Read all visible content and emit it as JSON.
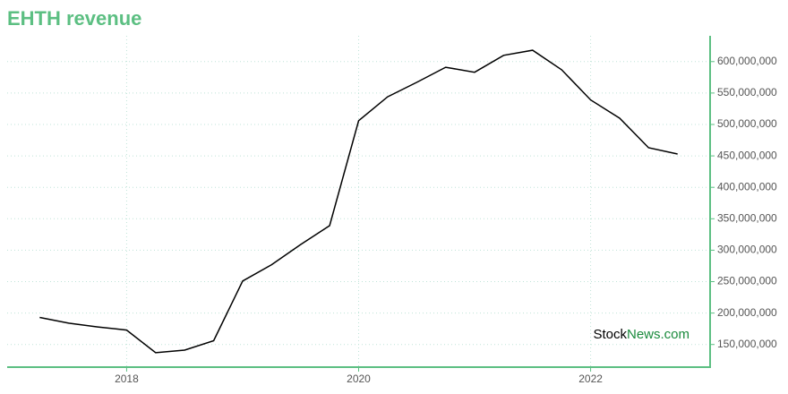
{
  "chart_data": {
    "type": "line",
    "title": "EHTH revenue",
    "x": [
      2017.25,
      2017.5,
      2017.75,
      2018,
      2018.25,
      2018.5,
      2018.75,
      2019,
      2019.25,
      2019.5,
      2019.75,
      2020,
      2020.25,
      2020.5,
      2020.75,
      2021,
      2021.25,
      2021.5,
      2021.75,
      2022,
      2022.25,
      2022.5,
      2022.75
    ],
    "series": [
      {
        "color": "#000000",
        "values": [
          193000000,
          184000000,
          178000000,
          173000000,
          137000000,
          141000000,
          156000000,
          251000000,
          277000000,
          309000000,
          339000000,
          506000000,
          544000000,
          567000000,
          591000000,
          583000000,
          610000000,
          618000000,
          587000000,
          539000000,
          510000000,
          463000000,
          453000000
        ]
      }
    ],
    "xlim": [
      2016.97,
      2023.03
    ],
    "xticks": [
      2018,
      2020,
      2022
    ],
    "ylim": [
      114000000,
      641000000
    ],
    "yticks": [
      {
        "value": 150000000,
        "label": "150,000,000"
      },
      {
        "value": 200000000,
        "label": "200,000,000"
      },
      {
        "value": 250000000,
        "label": "250,000,000"
      },
      {
        "value": 300000000,
        "label": "300,000,000"
      },
      {
        "value": 350000000,
        "label": "350,000,000"
      },
      {
        "value": 400000000,
        "label": "400,000,000"
      },
      {
        "value": 450000000,
        "label": "450,000,000"
      },
      {
        "value": 500000000,
        "label": "500,000,000"
      },
      {
        "value": 550000000,
        "label": "550,000,000"
      },
      {
        "value": 600000000,
        "label": "600,000,000"
      }
    ],
    "grid": true,
    "axis_color": "#5cbf82",
    "watermark": {
      "first": "Stock",
      "second": "News.com"
    }
  }
}
